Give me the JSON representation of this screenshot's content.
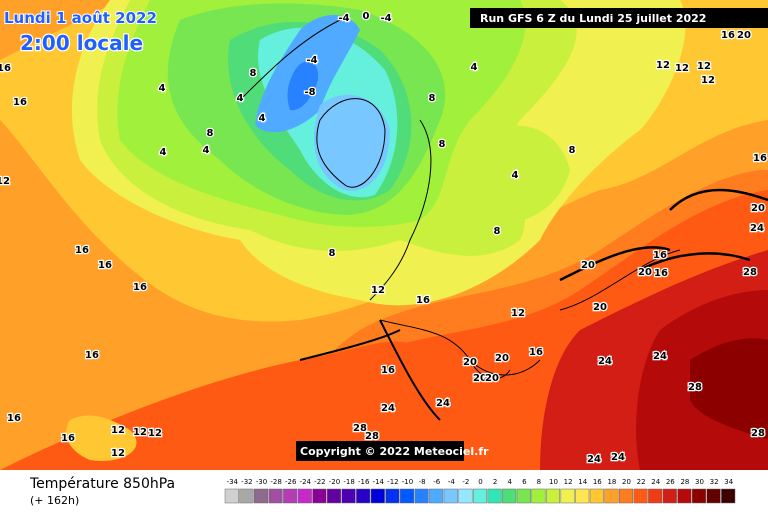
{
  "header": {
    "date": "Lundi 1 août 2022",
    "time": "2:00 locale",
    "run": "Run GFS 6 Z du Lundi 25 juillet 2022",
    "copyright": "Copyright © 2022 Meteociel.fr"
  },
  "footer": {
    "title": "Température 850hPa",
    "lead": "(+ 162h)"
  },
  "legend": {
    "ticks": [
      -34,
      -32,
      -30,
      -28,
      -26,
      -24,
      -22,
      -20,
      -18,
      -16,
      -14,
      -12,
      -10,
      -8,
      -6,
      -4,
      -2,
      0,
      2,
      4,
      6,
      8,
      10,
      12,
      14,
      16,
      18,
      20,
      22,
      24,
      26,
      28,
      30,
      32,
      34
    ],
    "colors": [
      "#d0d0d0",
      "#a8a8a8",
      "#8c6c8c",
      "#a050a0",
      "#b43cb4",
      "#c828c8",
      "#8c0096",
      "#6400a0",
      "#4b00b4",
      "#2800c8",
      "#0000dc",
      "#0032f0",
      "#005aff",
      "#2882ff",
      "#50aaff",
      "#78c8ff",
      "#96e6ff",
      "#64f0dc",
      "#32e6b4",
      "#50dc78",
      "#78e650",
      "#a0f03c",
      "#c8f03c",
      "#f0f050",
      "#ffe650",
      "#ffc832",
      "#ffa028",
      "#ff7d1e",
      "#ff5a14",
      "#f03c14",
      "#d21e14",
      "#b40a0a",
      "#8c0000",
      "#640000",
      "#3c0000"
    ]
  },
  "map_labels": [
    16,
    16,
    12,
    16,
    16,
    16,
    16,
    16,
    16,
    12,
    12,
    12,
    12,
    4,
    4,
    4,
    8,
    8,
    4,
    4,
    -4,
    -8,
    -4,
    0,
    -4,
    8,
    8,
    4,
    8,
    4,
    8,
    12,
    16,
    12,
    20,
    16,
    20,
    20,
    20,
    20,
    20,
    16,
    24,
    24,
    16,
    24,
    24,
    28,
    28,
    20,
    24,
    16,
    16,
    20,
    12,
    12,
    12,
    12,
    28,
    28,
    24,
    24,
    28,
    20,
    16,
    8
  ]
}
